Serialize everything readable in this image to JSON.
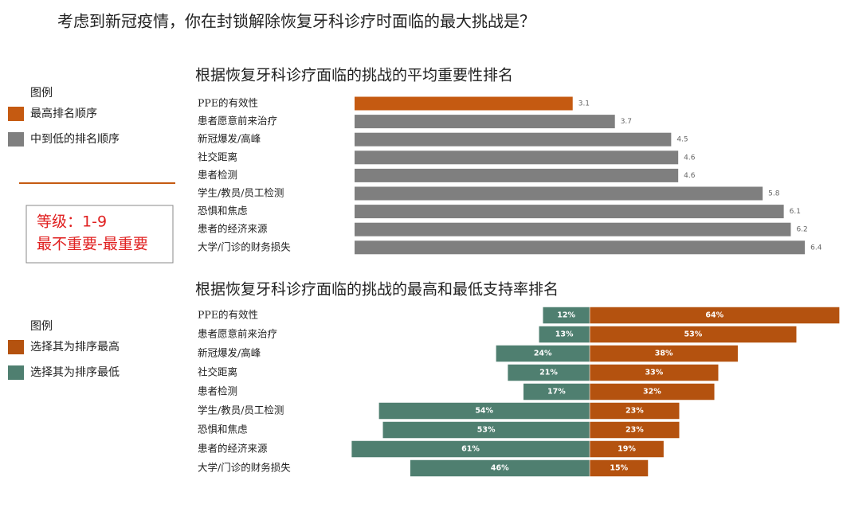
{
  "question": "考虑到新冠疫情，你在封锁解除恢复牙科诊疗时面临的最大挑战是？",
  "annotation": [
    "等级：1-9",
    "最不重要-最重要"
  ],
  "chart_data": [
    {
      "type": "bar",
      "orientation": "horizontal",
      "title": "根据恢复牙科诊疗面临的挑战的平均重要性排名",
      "categories": [
        "PPE的有效性",
        "患者愿意前来治疗",
        "新冠爆发/高峰",
        "社交距离",
        "患者检测",
        "学生/教员/员工检测",
        "恐惧和焦虑",
        "患者的经济来源",
        "大学/门诊的财务损失"
      ],
      "values": [
        3.1,
        3.7,
        4.5,
        4.6,
        4.6,
        5.8,
        6.1,
        6.2,
        6.4
      ],
      "colors": [
        "#c55a11",
        "#7f7f7f",
        "#7f7f7f",
        "#7f7f7f",
        "#7f7f7f",
        "#7f7f7f",
        "#7f7f7f",
        "#7f7f7f",
        "#7f7f7f"
      ],
      "legend_title": "图例",
      "legend": [
        {
          "label": "最高排名顺序",
          "color": "#c55a11"
        },
        {
          "label": "中到低的排名顺序",
          "color": "#7f7f7f"
        }
      ]
    },
    {
      "type": "diverging_bar",
      "title": "根据恢复牙科诊疗面临的挑战的最高和最低支持率排名",
      "categories": [
        "PPE的有效性",
        "患者愿意前来治疗",
        "新冠爆发/高峰",
        "社交距离",
        "患者检测",
        "学生/教员/员工检测",
        "恐惧和焦虑",
        "患者的经济来源",
        "大学/门诊的财务损失"
      ],
      "legend_title": "图例",
      "series": [
        {
          "name": "选择其为排序最高",
          "color": "#b4520f",
          "side": "right",
          "values": [
            64,
            53,
            38,
            33,
            32,
            23,
            23,
            19,
            15
          ],
          "value_labels": [
            "64%",
            "53%",
            "38%",
            "33%",
            "32%",
            "23%",
            "23%",
            "19%",
            "15%"
          ]
        },
        {
          "name": "选择其为排序最低",
          "color": "#4f7f70",
          "side": "left",
          "values": [
            12,
            13,
            24,
            21,
            17,
            54,
            53,
            61,
            46
          ],
          "value_labels": [
            "12%",
            "13%",
            "24%",
            "21%",
            "17%",
            "54%",
            "53%",
            "61%",
            "46%"
          ]
        }
      ]
    }
  ]
}
